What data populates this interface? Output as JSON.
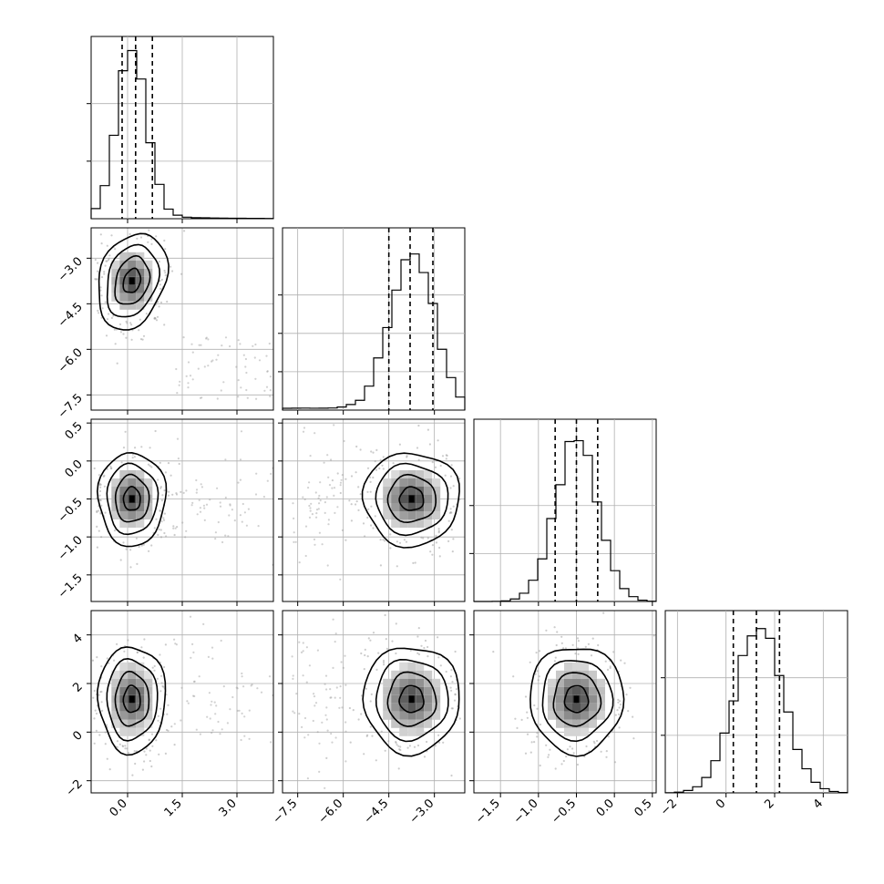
{
  "chart_data": {
    "type": "corner",
    "title": "",
    "parameters": [
      {
        "label": "",
        "range": [
          -1.0,
          4.0
        ],
        "ticks": [
          0.0,
          1.5,
          3.0
        ],
        "tick_labels": [
          "0.0",
          "1.5",
          "3.0"
        ],
        "quantiles": [
          -0.15,
          0.22,
          0.68
        ],
        "mode": 0.12,
        "sigma": 0.42,
        "hist_peak": 0.9
      },
      {
        "label": "",
        "range": [
          -8.0,
          -2.0
        ],
        "ticks": [
          -7.5,
          -6.0,
          -4.5,
          -3.0
        ],
        "tick_labels": [
          "−7.5",
          "−6.0",
          "−4.5",
          "−3.0"
        ],
        "quantiles": [
          -4.5,
          -3.8,
          -3.05
        ],
        "mode": -3.75,
        "sigma": 0.72,
        "hist_peak": 0.88
      },
      {
        "label": "",
        "range": [
          -1.85,
          0.55
        ],
        "ticks": [
          -1.5,
          -1.0,
          -0.5,
          0.0,
          0.5
        ],
        "tick_labels": [
          "−1.5",
          "−1.0",
          "−0.5",
          "0.0",
          "0.5"
        ],
        "quantiles": [
          -0.78,
          -0.5,
          -0.22
        ],
        "mode": -0.5,
        "sigma": 0.28,
        "hist_peak": 0.9
      },
      {
        "label": "",
        "range": [
          -2.5,
          5.0
        ],
        "ticks": [
          -2,
          0,
          2,
          4
        ],
        "tick_labels": [
          "−2",
          "0",
          "2",
          "4"
        ],
        "quantiles": [
          0.3,
          1.25,
          2.2
        ],
        "mode": 1.35,
        "sigma": 1.0,
        "hist_peak": 0.9
      }
    ],
    "histogram_yticks": [
      [
        0.3,
        0.6
      ],
      [
        0.2,
        0.4,
        0.6
      ],
      [
        0.25,
        0.5
      ],
      [
        0.3,
        0.6
      ]
    ],
    "histogram_style": "step, black outline, dashed vertical lines at 16th/50th/84th percentiles",
    "pair_panels": "2D density: grey scatter points, grey-scale filled histogram, black contour lines",
    "grid": true,
    "colors": {
      "line": "#000000",
      "grid": "#b0b0b0",
      "scatter": "#9a9a9a"
    }
  }
}
